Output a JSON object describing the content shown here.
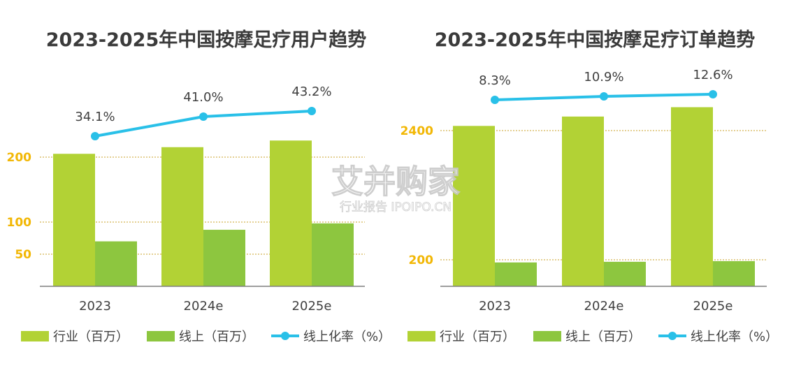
{
  "colors": {
    "industry": "#b2d235",
    "online": "#8dc63f",
    "rate": "#29c0e8",
    "gridline": "#c9a227",
    "axis": "#7f7f7f",
    "ytick": "#f2b705"
  },
  "legend": {
    "industry": "行业（百万）",
    "online": "线上（百万）",
    "rate": "线上化率（%）"
  },
  "watermark": {
    "brand": "艾并购家",
    "sub": "行业报告 IPOIPO.CN"
  },
  "chart_data": [
    {
      "type": "bar",
      "title": "2023-2025年中国按摩足疗用户趋势",
      "categories": [
        "2023",
        "2024e",
        "2025e"
      ],
      "yticks": [
        "50",
        "100",
        "200"
      ],
      "series": [
        {
          "name": "行业（百万）",
          "values": [
            205,
            215,
            225
          ]
        },
        {
          "name": "线上（百万）",
          "values": [
            70,
            88,
            98
          ]
        }
      ],
      "rate": {
        "name": "线上化率（%）",
        "values": [
          34.1,
          41.0,
          43.2
        ],
        "labels": [
          "34.1%",
          "41.0%",
          "43.2%"
        ]
      },
      "ylim": [
        0,
        260
      ],
      "grid": true,
      "legend_position": "bottom"
    },
    {
      "type": "bar",
      "title": "2023-2025年中国按摩足疗订单趋势",
      "categories": [
        "2023",
        "2024e",
        "2025e"
      ],
      "yticks": [
        "200",
        "2400"
      ],
      "series": [
        {
          "name": "行业（百万）",
          "values": [
            2420,
            2460,
            2500
          ]
        },
        {
          "name": "线上（百万）",
          "values": [
            180,
            185,
            190
          ]
        }
      ],
      "rate": {
        "name": "线上化率（%）",
        "values": [
          8.3,
          10.9,
          12.6
        ],
        "labels": [
          "8.3%",
          "10.9%",
          "12.6%"
        ]
      },
      "grid": true,
      "legend_position": "bottom"
    }
  ]
}
